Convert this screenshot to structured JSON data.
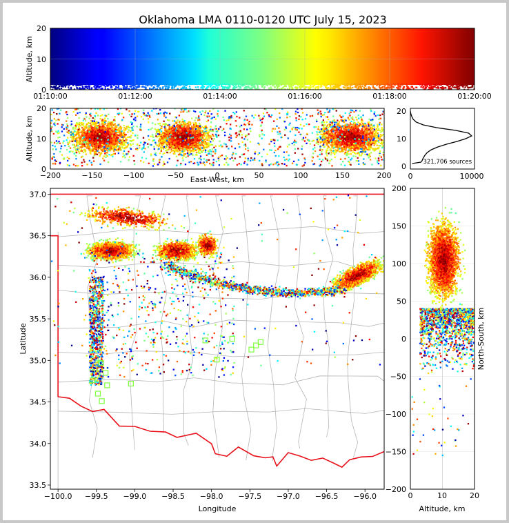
{
  "chart_data": [
    {
      "panel": "time-height",
      "type": "scatter",
      "title": "Oklahoma LMA 0110-0120 UTC July 15, 2023",
      "ylabel": "Altitude, km",
      "ylim": [
        0,
        20
      ],
      "yticks": [
        "0",
        "10",
        "20"
      ],
      "xticks": [
        "01:10:00",
        "01:12:00",
        "01:14:00",
        "01:16:00",
        "01:18:00",
        "01:20:00"
      ],
      "xlim": [
        "01:10:00",
        "01:20:00"
      ],
      "color_by": "time",
      "grid": true
    },
    {
      "panel": "east-west-altitude",
      "type": "scatter",
      "xlabel": "East-West, km",
      "ylabel": "Altitude, km",
      "xlim": [
        -200,
        200
      ],
      "ylim": [
        0,
        20
      ],
      "xticks": [
        "−200",
        "−150",
        "−100",
        "−50",
        "0",
        "50",
        "100",
        "150",
        "200"
      ],
      "yticks": [
        "0",
        "10",
        "20"
      ],
      "clusters": [
        {
          "x": -140,
          "y": 10.5,
          "spread_x": 32,
          "spread_y": 5
        },
        {
          "x": -40,
          "y": 10.5,
          "spread_x": 30,
          "spread_y": 5
        },
        {
          "x": 160,
          "y": 10.5,
          "spread_x": 35,
          "spread_y": 5
        }
      ]
    },
    {
      "panel": "altitude-histogram",
      "type": "line",
      "xlim": [
        0,
        11000
      ],
      "ylim": [
        -1,
        21
      ],
      "xticks": [
        "0",
        "10000"
      ],
      "yticks": [
        "0",
        "10",
        "20"
      ],
      "annotation": "321,706 sources",
      "profile": [
        [
          1,
          300
        ],
        [
          1.5,
          1800
        ],
        [
          2,
          2000
        ],
        [
          3,
          2200
        ],
        [
          4,
          2500
        ],
        [
          5,
          2900
        ],
        [
          6,
          3600
        ],
        [
          7,
          4700
        ],
        [
          8,
          6200
        ],
        [
          9,
          8000
        ],
        [
          10,
          9500
        ],
        [
          11,
          10500
        ],
        [
          12,
          10000
        ],
        [
          13,
          7800
        ],
        [
          14,
          4500
        ],
        [
          15,
          2200
        ],
        [
          16,
          1000
        ],
        [
          17,
          500
        ],
        [
          18,
          250
        ],
        [
          19,
          80
        ],
        [
          20,
          0
        ]
      ]
    },
    {
      "panel": "plan-view",
      "type": "scatter",
      "xlabel": "Longitude",
      "ylabel": "Latitude",
      "xlim": [
        -100.1,
        -95.75
      ],
      "ylim": [
        33.45,
        37.07
      ],
      "xticks": [
        "−100.0",
        "−99.5",
        "−99.0",
        "−98.5",
        "−98.0",
        "−97.5",
        "−97.0",
        "−96.5",
        "−96.0"
      ],
      "yticks": [
        "33.5",
        "34.0",
        "34.5",
        "35.0",
        "35.5",
        "36.0",
        "36.5",
        "37.0"
      ],
      "stations": [
        [
          -99.55,
          34.76
        ],
        [
          -99.48,
          34.6
        ],
        [
          -99.43,
          34.51
        ],
        [
          -99.36,
          34.7
        ],
        [
          -99.38,
          34.85
        ],
        [
          -99.44,
          34.97
        ],
        [
          -99.05,
          34.72
        ],
        [
          -98.08,
          35.24
        ],
        [
          -97.93,
          35.01
        ],
        [
          -97.73,
          35.26
        ],
        [
          -97.48,
          35.13
        ],
        [
          -97.42,
          35.18
        ],
        [
          -97.36,
          35.22
        ]
      ],
      "boundary_color": "#e8101a"
    },
    {
      "panel": "north-south-altitude",
      "type": "scatter",
      "xlabel": "Altitude, km",
      "ylabel": "North-South, km",
      "xlim": [
        0,
        20
      ],
      "ylim": [
        -200,
        200
      ],
      "xticks": [
        "0",
        "10",
        "20"
      ],
      "yticks": [
        "−200",
        "−150",
        "−100",
        "−50",
        "0",
        "50",
        "100",
        "150",
        "200"
      ]
    }
  ]
}
